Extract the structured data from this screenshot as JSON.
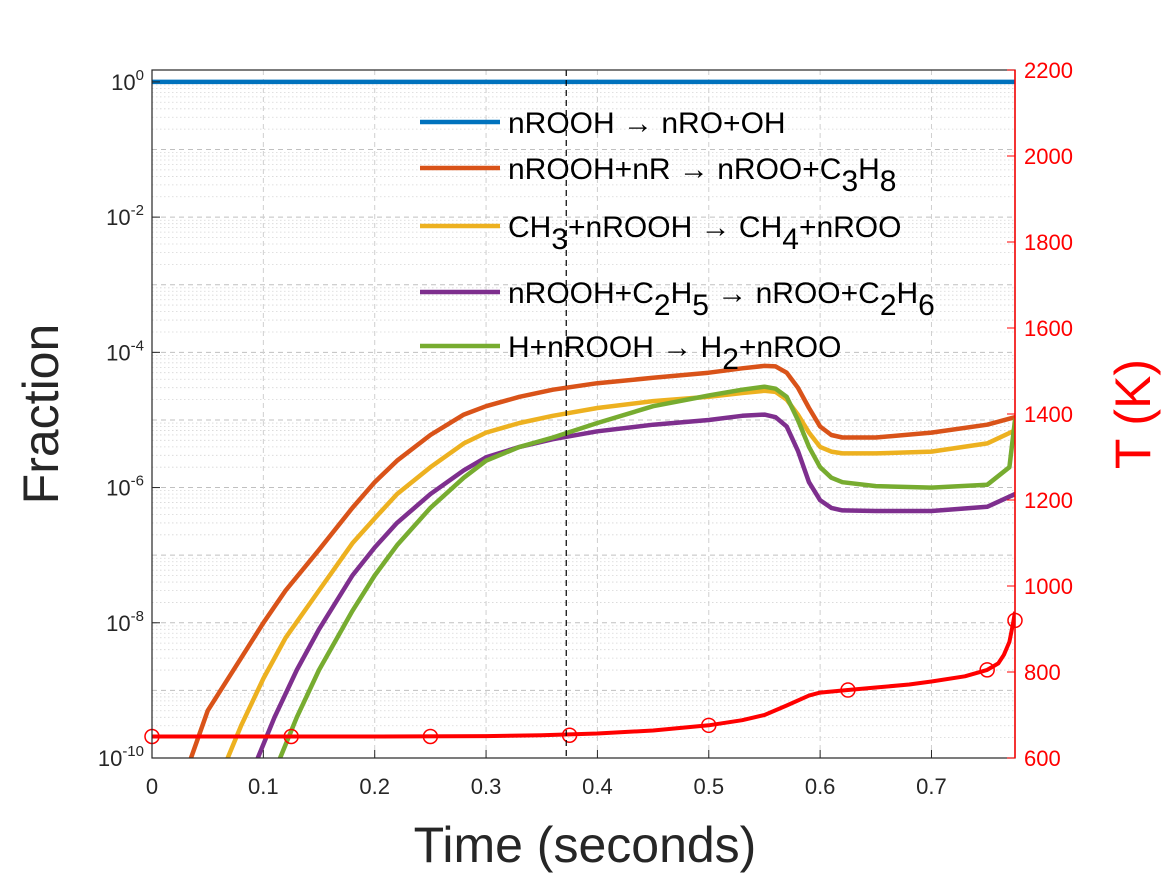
{
  "chart_data": {
    "type": "line",
    "title": "",
    "xlabel": "Time (seconds)",
    "ylabel": "Fraction",
    "y2label": "T (K)",
    "xlim": [
      0,
      0.775
    ],
    "ylim": [
      1e-10,
      1.5
    ],
    "yscale": "log",
    "y2lim": [
      600,
      2200
    ],
    "grid": true,
    "legend_position": "top-center",
    "x_ticks": [
      "0",
      "0.1",
      "0.2",
      "0.3",
      "0.4",
      "0.5",
      "0.6",
      "0.7"
    ],
    "y_ticks": [
      {
        "base": "10",
        "exp": "0"
      },
      {
        "base": "10",
        "exp": "-2"
      },
      {
        "base": "10",
        "exp": "-4"
      },
      {
        "base": "10",
        "exp": "-6"
      },
      {
        "base": "10",
        "exp": "-8"
      },
      {
        "base": "10",
        "exp": "-10"
      }
    ],
    "y2_ticks": [
      "600",
      "800",
      "1000",
      "1200",
      "1400",
      "1600",
      "1800",
      "2000",
      "2200"
    ],
    "vline_x": 0.372,
    "series": [
      {
        "name": "nROOH → nRO+OH",
        "label_parts": [
          [
            "nROOH ",
            ""
          ],
          [
            "→",
            ""
          ],
          [
            " nRO+OH",
            ""
          ]
        ],
        "color": "#0072BD",
        "x": [
          0,
          0.775
        ],
        "y": [
          1,
          1
        ]
      },
      {
        "name": "nROOH+nR → nROO+C3H8",
        "label_parts": [
          [
            "nROOH+nR ",
            ""
          ],
          [
            "→",
            ""
          ],
          [
            " nROO+C",
            ""
          ],
          [
            "3",
            "sub"
          ],
          [
            "H",
            ""
          ],
          [
            "8",
            "sub"
          ]
        ],
        "color": "#D95319",
        "x": [
          0.035,
          0.05,
          0.08,
          0.1,
          0.12,
          0.15,
          0.18,
          0.2,
          0.22,
          0.25,
          0.28,
          0.3,
          0.33,
          0.36,
          0.4,
          0.45,
          0.5,
          0.53,
          0.55,
          0.56,
          0.57,
          0.58,
          0.59,
          0.6,
          0.61,
          0.62,
          0.65,
          0.7,
          0.75,
          0.775
        ],
        "y": [
          1e-10,
          5e-10,
          3e-09,
          1e-08,
          3e-08,
          1.2e-07,
          5e-07,
          1.2e-06,
          2.5e-06,
          6e-06,
          1.2e-05,
          1.6e-05,
          2.2e-05,
          2.8e-05,
          3.5e-05,
          4.2e-05,
          5e-05,
          5.8e-05,
          6.3e-05,
          6.2e-05,
          5e-05,
          3e-05,
          1.5e-05,
          8e-06,
          6e-06,
          5.5e-06,
          5.5e-06,
          6.5e-06,
          8.5e-06,
          1.1e-05
        ]
      },
      {
        "name": "CH3+nROOH → CH4+nROO",
        "label_parts": [
          [
            "CH",
            ""
          ],
          [
            "3",
            "sub"
          ],
          [
            "+nROOH ",
            ""
          ],
          [
            "→",
            ""
          ],
          [
            " CH",
            ""
          ],
          [
            "4",
            "sub"
          ],
          [
            "+nROO",
            ""
          ]
        ],
        "color": "#EDB120",
        "x": [
          0.068,
          0.08,
          0.1,
          0.12,
          0.15,
          0.18,
          0.2,
          0.22,
          0.25,
          0.28,
          0.3,
          0.33,
          0.36,
          0.4,
          0.45,
          0.5,
          0.53,
          0.55,
          0.56,
          0.57,
          0.58,
          0.59,
          0.6,
          0.61,
          0.62,
          0.65,
          0.7,
          0.75,
          0.775
        ],
        "y": [
          1e-10,
          3e-10,
          1.5e-09,
          6e-09,
          3e-08,
          1.5e-07,
          3.5e-07,
          8e-07,
          2e-06,
          4.5e-06,
          6.5e-06,
          9e-06,
          1.15e-05,
          1.5e-05,
          1.9e-05,
          2.2e-05,
          2.5e-05,
          2.7e-05,
          2.6e-05,
          2e-05,
          1.2e-05,
          6.5e-06,
          4e-06,
          3.4e-06,
          3.2e-06,
          3.2e-06,
          3.4e-06,
          4.5e-06,
          7e-06
        ]
      },
      {
        "name": "nROOH+C2H5 → nROO+C2H6",
        "label_parts": [
          [
            "nROOH+C",
            ""
          ],
          [
            "2",
            "sub"
          ],
          [
            "H",
            ""
          ],
          [
            "5",
            "sub"
          ],
          [
            " ",
            ""
          ],
          [
            "→",
            ""
          ],
          [
            " nROO+C",
            ""
          ],
          [
            "2",
            "sub"
          ],
          [
            "H",
            ""
          ],
          [
            "6",
            "sub"
          ]
        ],
        "color": "#7E2F8E",
        "x": [
          0.095,
          0.11,
          0.13,
          0.15,
          0.18,
          0.2,
          0.22,
          0.25,
          0.28,
          0.3,
          0.33,
          0.36,
          0.4,
          0.45,
          0.5,
          0.53,
          0.55,
          0.56,
          0.57,
          0.58,
          0.59,
          0.6,
          0.61,
          0.62,
          0.65,
          0.7,
          0.75,
          0.775
        ],
        "y": [
          1e-10,
          4e-10,
          2e-09,
          8e-09,
          5e-08,
          1.3e-07,
          3e-07,
          8e-07,
          1.8e-06,
          2.8e-06,
          4e-06,
          5.2e-06,
          6.8e-06,
          8.5e-06,
          1e-05,
          1.15e-05,
          1.2e-05,
          1.1e-05,
          8e-06,
          3.5e-06,
          1.2e-06,
          6.5e-07,
          5e-07,
          4.6e-07,
          4.5e-07,
          4.5e-07,
          5.2e-07,
          8e-07
        ]
      },
      {
        "name": "H+nROOH → H2+nROO",
        "label_parts": [
          [
            "H+nROOH ",
            ""
          ],
          [
            "→",
            ""
          ],
          [
            " H",
            ""
          ],
          [
            "2",
            "sub"
          ],
          [
            "+nROO",
            ""
          ]
        ],
        "color": "#77AC30",
        "x": [
          0.115,
          0.13,
          0.15,
          0.18,
          0.2,
          0.22,
          0.25,
          0.28,
          0.3,
          0.33,
          0.36,
          0.4,
          0.45,
          0.5,
          0.53,
          0.55,
          0.56,
          0.57,
          0.58,
          0.59,
          0.6,
          0.61,
          0.62,
          0.65,
          0.7,
          0.75,
          0.77,
          0.775
        ],
        "y": [
          1e-10,
          4e-10,
          2e-09,
          1.5e-08,
          5e-08,
          1.4e-07,
          5e-07,
          1.4e-06,
          2.5e-06,
          4e-06,
          5.5e-06,
          9e-06,
          1.6e-05,
          2.3e-05,
          2.8e-05,
          3.1e-05,
          2.9e-05,
          2.2e-05,
          1e-05,
          4e-06,
          2e-06,
          1.4e-06,
          1.2e-06,
          1.05e-06,
          1e-06,
          1.1e-06,
          2e-06,
          1e-05
        ]
      }
    ],
    "temperature": {
      "color": "#FF0000",
      "x": [
        0,
        0.1,
        0.2,
        0.3,
        0.35,
        0.4,
        0.45,
        0.5,
        0.53,
        0.55,
        0.57,
        0.59,
        0.6,
        0.62,
        0.65,
        0.68,
        0.7,
        0.73,
        0.75,
        0.76,
        0.765,
        0.77,
        0.773,
        0.775
      ],
      "y": [
        650,
        650,
        650,
        651,
        653,
        657,
        664,
        676,
        688,
        700,
        722,
        745,
        752,
        757,
        764,
        771,
        778,
        790,
        805,
        820,
        840,
        870,
        910,
        940
      ],
      "markers_x": [
        0,
        0.125,
        0.25,
        0.375,
        0.5,
        0.625,
        0.75,
        0.775
      ],
      "markers_y": [
        650,
        650,
        650,
        653,
        676,
        758,
        805,
        920
      ]
    }
  }
}
